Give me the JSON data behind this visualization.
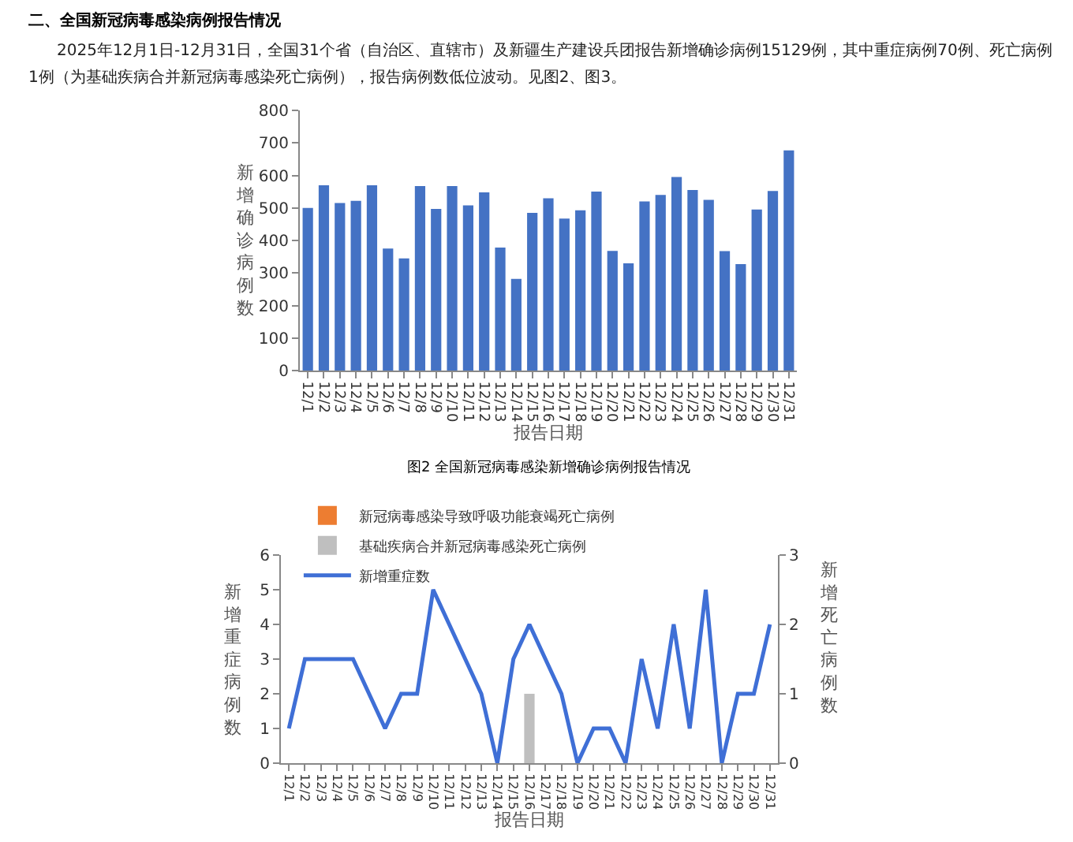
{
  "chart_data": [
    {
      "type": "bar",
      "title": "二、全国新冠病毒感染病例报告情况",
      "subtitle": "2025年12月1日-12月31日，全国31个省（自治区、直辖市）及新疆生产建设兵团报告新增确诊病例15129例，其中重症病例70例、死亡病例1例（为基础疾病合并新冠病毒感染死亡病例），报告病例数低位波动。见图2、图3。",
      "xlabel": "报告日期",
      "ylabel": "新增确诊病例数",
      "annotations": [
        "图2 全国新冠病毒感染新增确诊病例报告情况"
      ],
      "categories": [
        "12/1",
        "12/2",
        "12/3",
        "12/4",
        "12/5",
        "12/6",
        "12/7",
        "12/8",
        "12/9",
        "12/10",
        "12/11",
        "12/12",
        "12/13",
        "12/14",
        "12/15",
        "12/16",
        "12/17",
        "12/18",
        "12/19",
        "12/20",
        "12/21",
        "12/22",
        "12/23",
        "12/24",
        "12/25",
        "12/26",
        "12/27",
        "12/28",
        "12/29",
        "12/30",
        "12/31"
      ],
      "color": "#4472c4",
      "values": [
        500,
        570,
        515,
        522,
        570,
        375,
        345,
        567,
        497,
        567,
        508,
        548,
        378,
        282,
        485,
        530,
        467,
        493,
        550,
        368,
        330,
        520,
        540,
        595,
        555,
        525,
        367,
        327,
        495,
        552,
        677
      ],
      "ylim": [
        0,
        800
      ],
      "yticks": [
        0,
        100,
        200,
        300,
        400,
        500,
        600,
        700,
        800
      ],
      "grid": false,
      "legend": false
    },
    {
      "type": "line",
      "xlabel": "报告日期",
      "ylabel": "新增重症病例数",
      "y2label": "新增死亡病例数",
      "categories": [
        "12/1",
        "12/2",
        "12/3",
        "12/4",
        "12/5",
        "12/6",
        "12/7",
        "12/8",
        "12/9",
        "12/10",
        "12/11",
        "12/12",
        "12/13",
        "12/14",
        "12/15",
        "12/16",
        "12/17",
        "12/18",
        "12/19",
        "12/20",
        "12/21",
        "12/22",
        "12/23",
        "12/24",
        "12/25",
        "12/26",
        "12/27",
        "12/28",
        "12/29",
        "12/30",
        "12/31"
      ],
      "series": [
        {
          "name": "新冠病毒感染导致呼吸功能衰竭死亡病例",
          "type": "bar",
          "axis": "y2",
          "color": "#ed7d31",
          "values": [
            0,
            0,
            0,
            0,
            0,
            0,
            0,
            0,
            0,
            0,
            0,
            0,
            0,
            0,
            0,
            0,
            0,
            0,
            0,
            0,
            0,
            0,
            0,
            0,
            0,
            0,
            0,
            0,
            0,
            0,
            0
          ]
        },
        {
          "name": "基础疾病合并新冠病毒感染死亡病例",
          "type": "bar",
          "axis": "y2",
          "color": "#bfbfbf",
          "values": [
            0,
            0,
            0,
            0,
            0,
            0,
            0,
            0,
            0,
            0,
            0,
            0,
            0,
            0,
            0,
            1,
            0,
            0,
            0,
            0,
            0,
            0,
            0,
            0,
            0,
            0,
            0,
            0,
            0,
            0,
            0
          ]
        },
        {
          "name": "新增重症数",
          "color": "#3f6fd6",
          "values": [
            1,
            3,
            3,
            3,
            3,
            2,
            1,
            2,
            2,
            5,
            4,
            3,
            2,
            0,
            3,
            4,
            3,
            2,
            0,
            1,
            1,
            0,
            3,
            1,
            4,
            1,
            5,
            0,
            2,
            2,
            4
          ]
        }
      ],
      "ylim": [
        0,
        6
      ],
      "yticks": [
        0,
        1,
        2,
        3,
        4,
        5,
        6
      ],
      "y2lim": [
        0,
        3
      ],
      "y2ticks": [
        0,
        1,
        2,
        3
      ],
      "grid": false,
      "legend": "top left",
      "marker": "none",
      "line_style": "solid"
    }
  ]
}
